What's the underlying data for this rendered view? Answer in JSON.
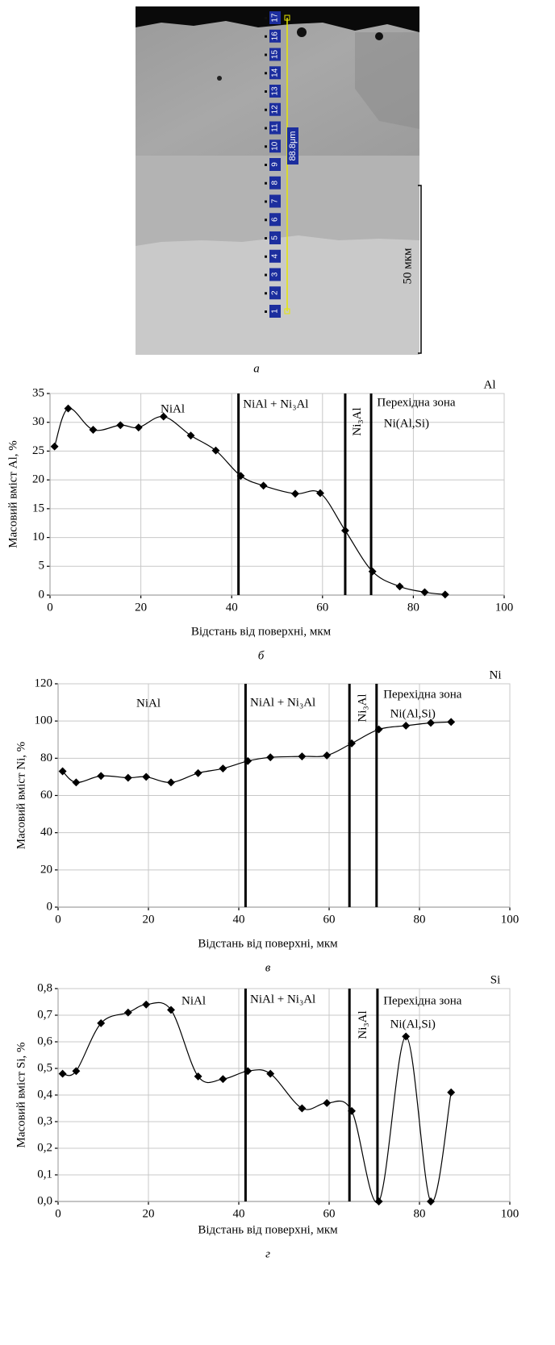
{
  "micrograph": {
    "point_labels": [
      "1",
      "2",
      "3",
      "4",
      "5",
      "6",
      "7",
      "8",
      "9",
      "10",
      "11",
      "12",
      "13",
      "14",
      "15",
      "16",
      "17"
    ],
    "length_label": "88.8μm",
    "scale_label": "50 мкм",
    "caption": "а"
  },
  "chart_data": [
    {
      "type": "line",
      "element": "Al",
      "caption": "б",
      "xlabel": "Відстань від поверхні, мкм",
      "ylabel": "Масовий вміст Al, %",
      "x": [
        1,
        4,
        9.5,
        15.5,
        19.5,
        25,
        31,
        36.5,
        42,
        47,
        54,
        59.5,
        65,
        71,
        77,
        82.5,
        87
      ],
      "series": [
        {
          "name": "Al",
          "color": "#000000",
          "values": [
            25.8,
            32.4,
            28.7,
            29.5,
            29.1,
            31,
            27.7,
            25.1,
            20.7,
            19,
            17.6,
            17.7,
            11.2,
            4.1,
            1.5,
            0.5,
            0.1
          ]
        }
      ],
      "xlim": [
        0,
        100
      ],
      "xticks": [
        0,
        20,
        40,
        60,
        80,
        100
      ],
      "ylim": [
        0,
        35
      ],
      "yticks": [
        0,
        5,
        10,
        15,
        20,
        25,
        30,
        35
      ],
      "grid": true,
      "boundaries": [
        41.5,
        65,
        70.7
      ],
      "annotations": [
        "NiAl",
        "NiAl + Ni₃Al",
        "Ni₃Al",
        "Перехідна зона",
        "Ni(Al,Si)"
      ]
    },
    {
      "type": "line",
      "element": "Ni",
      "caption": "в",
      "xlabel": "Відстань від поверхні, мкм",
      "ylabel": "Масовий вміст Ni, %",
      "x": [
        1,
        4,
        9.5,
        15.5,
        19.5,
        25,
        31,
        36.5,
        42,
        47,
        54,
        59.5,
        65,
        71,
        77,
        82.5,
        87
      ],
      "series": [
        {
          "name": "Ni",
          "color": "#000000",
          "values": [
            73,
            67,
            70.5,
            69.5,
            70,
            67,
            72,
            74.5,
            78.5,
            80.5,
            81,
            81.5,
            88,
            95.5,
            97.5,
            99,
            99.5
          ]
        }
      ],
      "xlim": [
        0,
        100
      ],
      "xticks": [
        0,
        20,
        40,
        60,
        80,
        100
      ],
      "ylim": [
        0,
        120
      ],
      "yticks": [
        0,
        20,
        40,
        60,
        80,
        100,
        120
      ],
      "grid": true,
      "boundaries": [
        41.5,
        64.5,
        70.5
      ],
      "annotations": [
        "NiAl",
        "NiAl + Ni₃Al",
        "Ni₃Al",
        "Перехідна зона",
        "Ni(Al,Si)"
      ]
    },
    {
      "type": "line",
      "element": "Si",
      "caption": "г",
      "xlabel": "Відстань від поверхні, мкм",
      "ylabel": "Масовий вміст Si, %",
      "x": [
        1,
        4,
        9.5,
        15.5,
        19.5,
        25,
        31,
        36.5,
        42,
        47,
        54,
        59.5,
        65,
        71,
        77,
        82.5,
        87
      ],
      "series": [
        {
          "name": "Si",
          "color": "#000000",
          "values": [
            0.48,
            0.49,
            0.67,
            0.71,
            0.74,
            0.72,
            0.47,
            0.46,
            0.49,
            0.48,
            0.35,
            0.37,
            0.34,
            0.0,
            0.62,
            0.0,
            0.41
          ]
        }
      ],
      "xlim": [
        0,
        100
      ],
      "xticks": [
        0,
        20,
        40,
        60,
        80,
        100
      ],
      "ylim": [
        0,
        0.8
      ],
      "yticks": [
        {
          "value": 0,
          "label": "0,0"
        },
        {
          "value": 0.1,
          "label": "0,1"
        },
        {
          "value": 0.2,
          "label": "0,2"
        },
        {
          "value": 0.3,
          "label": "0,3"
        },
        {
          "value": 0.4,
          "label": "0,4"
        },
        {
          "value": 0.5,
          "label": "0,5"
        },
        {
          "value": 0.6,
          "label": "0,6"
        },
        {
          "value": 0.7,
          "label": "0,7"
        },
        {
          "value": 0.8,
          "label": "0,8"
        }
      ],
      "grid": true,
      "boundaries": [
        41.5,
        64.5,
        70.7
      ],
      "annotations": [
        "NiAl",
        "NiAl + Ni₃Al",
        "Ni₃Al",
        "Перехідна зона",
        "Ni(Al,Si)"
      ]
    }
  ]
}
